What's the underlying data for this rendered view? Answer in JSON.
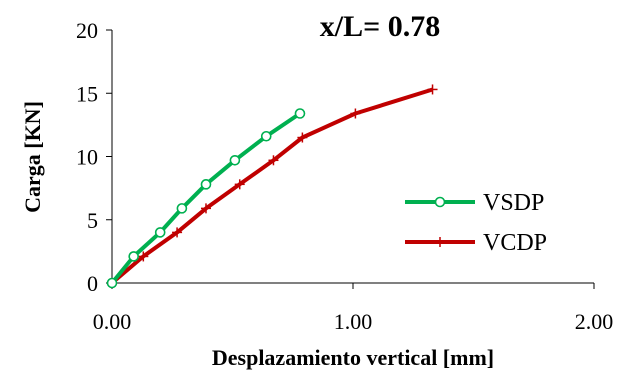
{
  "chart_data": {
    "type": "line",
    "title": "x/L= 0.78",
    "xlabel": "Desplazamiento vertical [mm]",
    "ylabel": "Carga [KN]",
    "xlim": [
      0,
      2
    ],
    "ylim": [
      0,
      20
    ],
    "xticks": [
      "0.00",
      "1.00",
      "2.00"
    ],
    "yticks": [
      "0",
      "5",
      "10",
      "15",
      "20"
    ],
    "grid": false,
    "legend_position": "right",
    "series": [
      {
        "name": "VSDP",
        "color": "#00b050",
        "marker": "circle",
        "x": [
          0.0,
          0.09,
          0.2,
          0.29,
          0.39,
          0.51,
          0.64,
          0.78
        ],
        "y": [
          0,
          2.1,
          4.0,
          5.9,
          7.8,
          9.7,
          11.6,
          13.4
        ]
      },
      {
        "name": "VCDP",
        "color": "#c00000",
        "marker": "plus",
        "x": [
          0.0,
          0.13,
          0.27,
          0.39,
          0.53,
          0.67,
          0.79,
          1.01,
          1.33
        ],
        "y": [
          0,
          2.1,
          4.0,
          5.9,
          7.8,
          9.7,
          11.5,
          13.4,
          15.3
        ]
      }
    ]
  }
}
